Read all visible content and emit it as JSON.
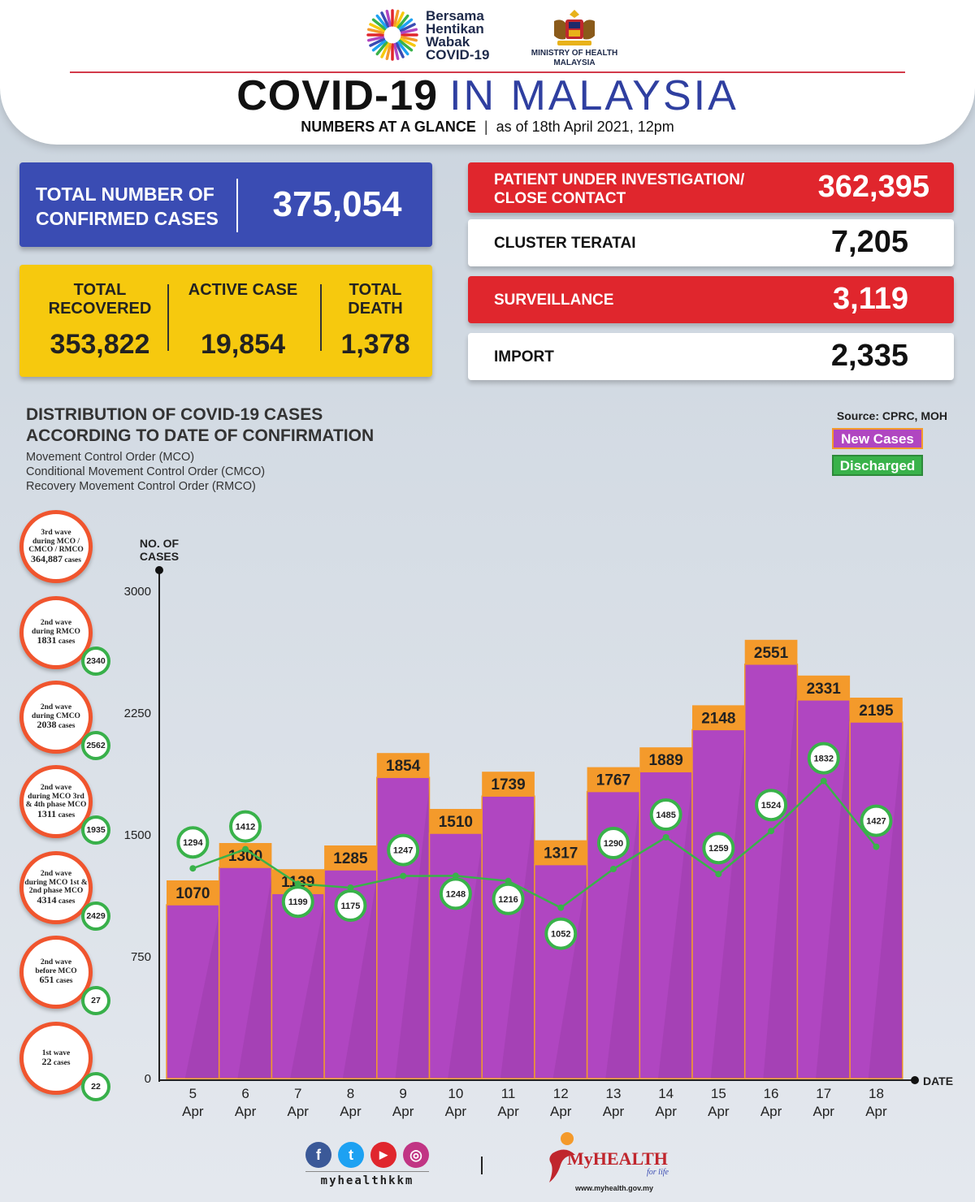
{
  "header": {
    "campaign": [
      "Bersama",
      "Hentikan",
      "Wabak",
      "COVID-19"
    ],
    "ministry": "MINISTRY OF HEALTH MALAYSIA",
    "title_bold": "COVID-19",
    "title_light": "IN MALAYSIA",
    "subtitle_bold": "NUMBERS AT A GLANCE",
    "subtitle_sep": "|",
    "subtitle_date": "as of 18th April 2021, 12pm"
  },
  "confirmed": {
    "label": "TOTAL NUMBER OF CONFIRMED CASES",
    "value": "375,054"
  },
  "outcomes": [
    {
      "label": "TOTAL RECOVERED",
      "value": "353,822"
    },
    {
      "label": "ACTIVE CASE",
      "value": "19,854"
    },
    {
      "label": "TOTAL DEATH",
      "value": "1,378"
    }
  ],
  "right_stats": [
    {
      "label": "PATIENT UNDER INVESTIGATION/ CLOSE CONTACT",
      "value": "362,395",
      "style": "red"
    },
    {
      "label": "CLUSTER TERATAI",
      "value": "7,205",
      "style": "white"
    },
    {
      "label": "SURVEILLANCE",
      "value": "3,119",
      "style": "red"
    },
    {
      "label": "IMPORT",
      "value": "2,335",
      "style": "white"
    }
  ],
  "distribution": {
    "title": "DISTRIBUTION OF COVID-19 CASES ACCORDING TO DATE OF CONFIRMATION",
    "notes": [
      "Movement Control Order (MCO)",
      "Conditional Movement Control Order (CMCO)",
      "Recovery Movement Control Order (RMCO)"
    ],
    "source": "Source: CPRC, MOH"
  },
  "waves": [
    {
      "lines": [
        "3rd wave",
        "during MCO /",
        "CMCO / RMCO"
      ],
      "count": "364,887",
      "unit": "cases",
      "discharged": ""
    },
    {
      "lines": [
        "2nd wave",
        "during RMCO"
      ],
      "count": "1831",
      "unit": "cases",
      "discharged": "2340"
    },
    {
      "lines": [
        "2nd wave",
        "during CMCO"
      ],
      "count": "2038",
      "unit": "cases",
      "discharged": "2562"
    },
    {
      "lines": [
        "2nd wave",
        "during MCO 3rd",
        "& 4th phase MCO"
      ],
      "count": "1311",
      "unit": "cases",
      "discharged": "1935"
    },
    {
      "lines": [
        "2nd wave",
        "during MCO 1st &",
        "2nd phase MCO"
      ],
      "count": "4314",
      "unit": "cases",
      "discharged": "2429"
    },
    {
      "lines": [
        "2nd wave",
        "before MCO"
      ],
      "count": "651",
      "unit": "cases",
      "discharged": "27"
    },
    {
      "lines": [
        "1st wave"
      ],
      "count": "22",
      "unit": "cases",
      "discharged": "22"
    }
  ],
  "chart_data": {
    "type": "bar",
    "ylabel": "NO. OF CASES",
    "xlabel": "DATE",
    "ylim": [
      0,
      3000
    ],
    "yticks": [
      0,
      750,
      1500,
      2250,
      3000
    ],
    "categories": [
      {
        "day": "5",
        "month": "Apr"
      },
      {
        "day": "6",
        "month": "Apr"
      },
      {
        "day": "7",
        "month": "Apr"
      },
      {
        "day": "8",
        "month": "Apr"
      },
      {
        "day": "9",
        "month": "Apr"
      },
      {
        "day": "10",
        "month": "Apr"
      },
      {
        "day": "11",
        "month": "Apr"
      },
      {
        "day": "12",
        "month": "Apr"
      },
      {
        "day": "13",
        "month": "Apr"
      },
      {
        "day": "14",
        "month": "Apr"
      },
      {
        "day": "15",
        "month": "Apr"
      },
      {
        "day": "16",
        "month": "Apr"
      },
      {
        "day": "17",
        "month": "Apr"
      },
      {
        "day": "18",
        "month": "Apr"
      }
    ],
    "series": [
      {
        "name": "New Cases",
        "type": "bar",
        "color": "#b046c1",
        "label_color": "#f49a2b",
        "values": [
          1070,
          1300,
          1139,
          1285,
          1854,
          1510,
          1739,
          1317,
          1767,
          1889,
          2148,
          2551,
          2331,
          2195
        ]
      },
      {
        "name": "Discharged",
        "type": "line",
        "color": "#39b24a",
        "values": [
          1294,
          1412,
          1199,
          1175,
          1247,
          1248,
          1216,
          1052,
          1290,
          1485,
          1259,
          1524,
          1832,
          1427
        ]
      }
    ]
  },
  "footer": {
    "handle": "myhealthkkm",
    "social": [
      "f",
      "t",
      "▶",
      "◎"
    ],
    "brand": "MyHEALTH",
    "tagline": "for life",
    "url": "www.myhealth.gov.my"
  }
}
